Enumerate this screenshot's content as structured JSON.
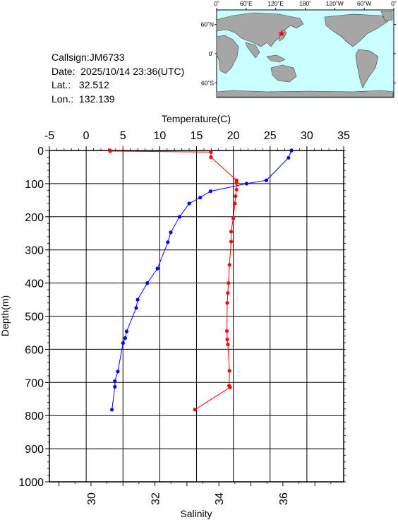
{
  "station": {
    "callsign": "Callsign:JM6733",
    "date": "Date:  2025/10/14 23:36(UTC)",
    "lat": "Lat.:   32.512",
    "lon": "Lon.:  132.139"
  },
  "map": {
    "top_labels": [
      "0˚",
      "60˚E",
      "120˚E",
      "180˚",
      "120˚W",
      "60˚W",
      "0˚"
    ],
    "right_labels": [
      "60˚N",
      "0˚",
      "60˚S"
    ],
    "ocean_color": "#c8ffff",
    "land_color": "#a6a6a6",
    "marker_color": "#ff0000",
    "marker_icon": "star-icon",
    "marker_lon": 132.139,
    "marker_lat": 32.512
  },
  "chart_data": {
    "type": "line",
    "ylabel": "Depth(m)",
    "top_axis_label": "Temperature(C)",
    "bottom_axis_label": "Salinity",
    "depth_ticks": [
      0,
      100,
      200,
      300,
      400,
      500,
      600,
      700,
      800,
      900,
      1000
    ],
    "temperature_ticks": [
      -5,
      0,
      5,
      10,
      15,
      20,
      25,
      30,
      35
    ],
    "salinity_ticks": [
      30,
      32,
      34,
      36
    ],
    "ylim": [
      1000,
      0
    ],
    "temperature_range": [
      -5,
      35
    ],
    "salinity_range": [
      28.7,
      37.9
    ],
    "grid": true,
    "series": [
      {
        "name": "",
        "kind": "temperature",
        "color": "#0000ff",
        "depth": [
          0,
          22,
          90,
          100,
          123,
          142,
          160,
          200,
          247,
          277,
          356,
          400,
          450,
          475,
          546,
          566,
          581,
          667,
          696,
          713,
          782
        ],
        "values": [
          27.9,
          27.5,
          24.5,
          21.8,
          16.9,
          15.5,
          14.0,
          12.7,
          11.5,
          11.1,
          9.7,
          8.3,
          7.0,
          6.8,
          5.5,
          5.3,
          5.0,
          4.3,
          3.9,
          3.9,
          3.5
        ]
      },
      {
        "name": "",
        "kind": "salinity",
        "color": "#ff0000",
        "depth": [
          0,
          2,
          5,
          20,
          90,
          98,
          118,
          138,
          160,
          205,
          245,
          275,
          345,
          400,
          430,
          460,
          545,
          570,
          585,
          665,
          710,
          715,
          782
        ],
        "values": [
          30.6,
          30.6,
          33.75,
          33.75,
          34.55,
          34.55,
          34.55,
          34.52,
          34.5,
          34.45,
          34.38,
          34.38,
          34.33,
          34.3,
          34.28,
          34.26,
          34.25,
          34.26,
          34.28,
          34.33,
          34.32,
          34.35,
          33.25
        ]
      }
    ]
  }
}
